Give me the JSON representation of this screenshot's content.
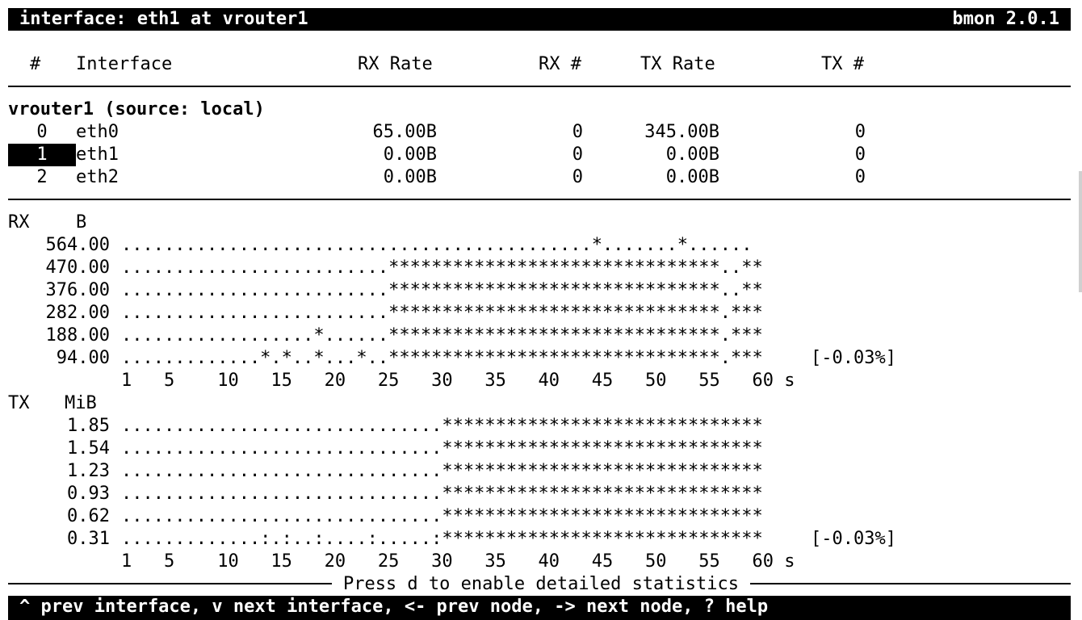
{
  "title_bar": {
    "title": "interface: eth1 at vrouter1",
    "version": "bmon 2.0.1"
  },
  "table": {
    "headers": [
      "#",
      "Interface",
      "RX Rate",
      "RX #",
      "TX Rate",
      "TX #"
    ],
    "group_label": "vrouter1 (source: local)",
    "rows": [
      {
        "index": "0",
        "name": "eth0",
        "rx_rate": "65.00B",
        "rx_count": "0",
        "tx_rate": "345.00B",
        "tx_count": "0",
        "selected": false
      },
      {
        "index": "1",
        "name": "eth1",
        "rx_rate": "0.00B",
        "rx_count": "0",
        "tx_rate": "0.00B",
        "tx_count": "0",
        "selected": true
      },
      {
        "index": "2",
        "name": "eth2",
        "rx_rate": "0.00B",
        "rx_count": "0",
        "tx_rate": "0.00B",
        "tx_count": "0",
        "selected": false
      }
    ]
  },
  "rx_graph": {
    "label": "RX",
    "unit": "B",
    "y_labels": [
      "564.00",
      "470.00",
      "376.00",
      "282.00",
      "188.00",
      "94.00"
    ],
    "rows": [
      "............................................*.......*......",
      ".........................*******************************..**",
      ".........................*******************************..**",
      ".........................*******************************.***",
      "..................*......*******************************.***",
      ".............*.*..*...*..*******************************.***"
    ],
    "change": "[-0.03%]",
    "x_axis": "1   5    10   15   20   25   30   35   40   45   50   55   60 s"
  },
  "tx_graph": {
    "label": "TX",
    "unit": "MiB",
    "y_labels": [
      "1.85",
      "1.54",
      "1.23",
      "0.93",
      "0.62",
      "0.31"
    ],
    "rows": [
      "..............................******************************",
      "..............................******************************",
      "..............................******************************",
      "..............................******************************",
      "..............................******************************",
      ".............:.:..:....:.....:******************************"
    ],
    "change": "[-0.03%]",
    "x_axis": "1   5    10   15   20   25   30   35   40   45   50   55   60 s"
  },
  "hint": "Press d to enable detailed statistics",
  "help_bar": "^ prev interface, v next interface, <- prev node, -> next node, ? help"
}
